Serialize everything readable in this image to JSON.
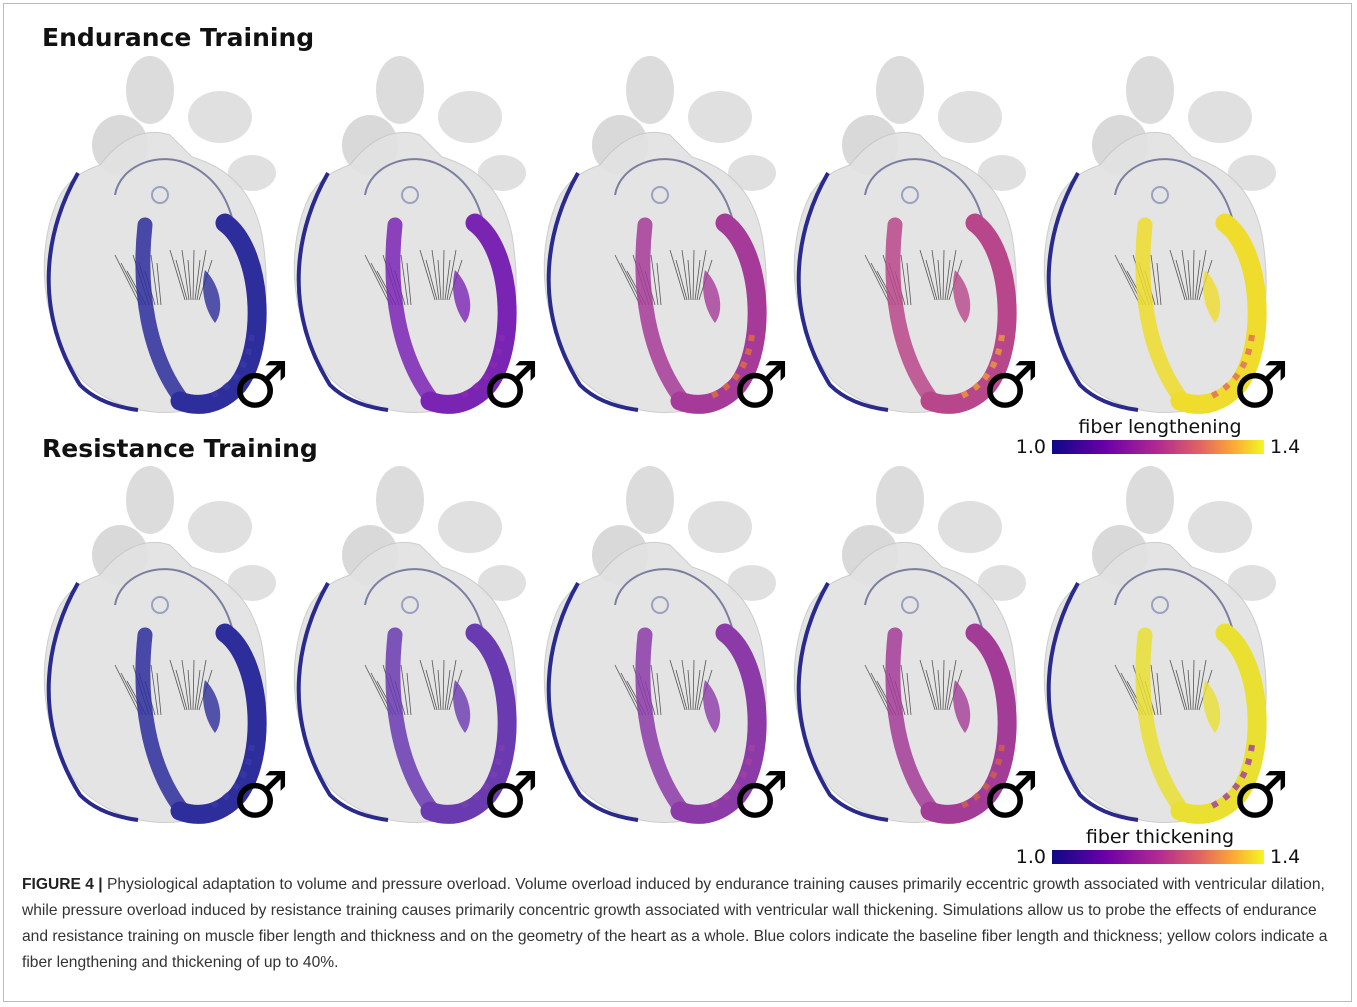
{
  "panels": [
    {
      "title": "Endurance Training",
      "colorbar": {
        "label": "fiber lengthening",
        "min": "1.0",
        "max": "1.4"
      },
      "symbols": [
        "♂",
        "♂",
        "♂",
        "♂",
        "♂"
      ]
    },
    {
      "title": "Resistance Training",
      "colorbar": {
        "label": "fiber thickening",
        "min": "1.0",
        "max": "1.4"
      },
      "symbols": [
        "♂",
        "♂",
        "♂",
        "♂",
        "♂"
      ]
    }
  ],
  "caption": {
    "label": "FIGURE 4 |",
    "text": "Physiological adaptation to volume and pressure overload. Volume overload induced by endurance training causes primarily eccentric growth associated with ventricular dilation, while pressure overload induced by resistance training causes primarily concentric growth associated with ventricular wall thickening. Simulations allow us to probe the effects of endurance and resistance training on muscle fiber length and thickness and on the geometry of the heart as a whole. Blue colors indicate the baseline fiber length and thickness; yellow colors indicate a fiber lengthening and thickening of up to 40%."
  }
}
